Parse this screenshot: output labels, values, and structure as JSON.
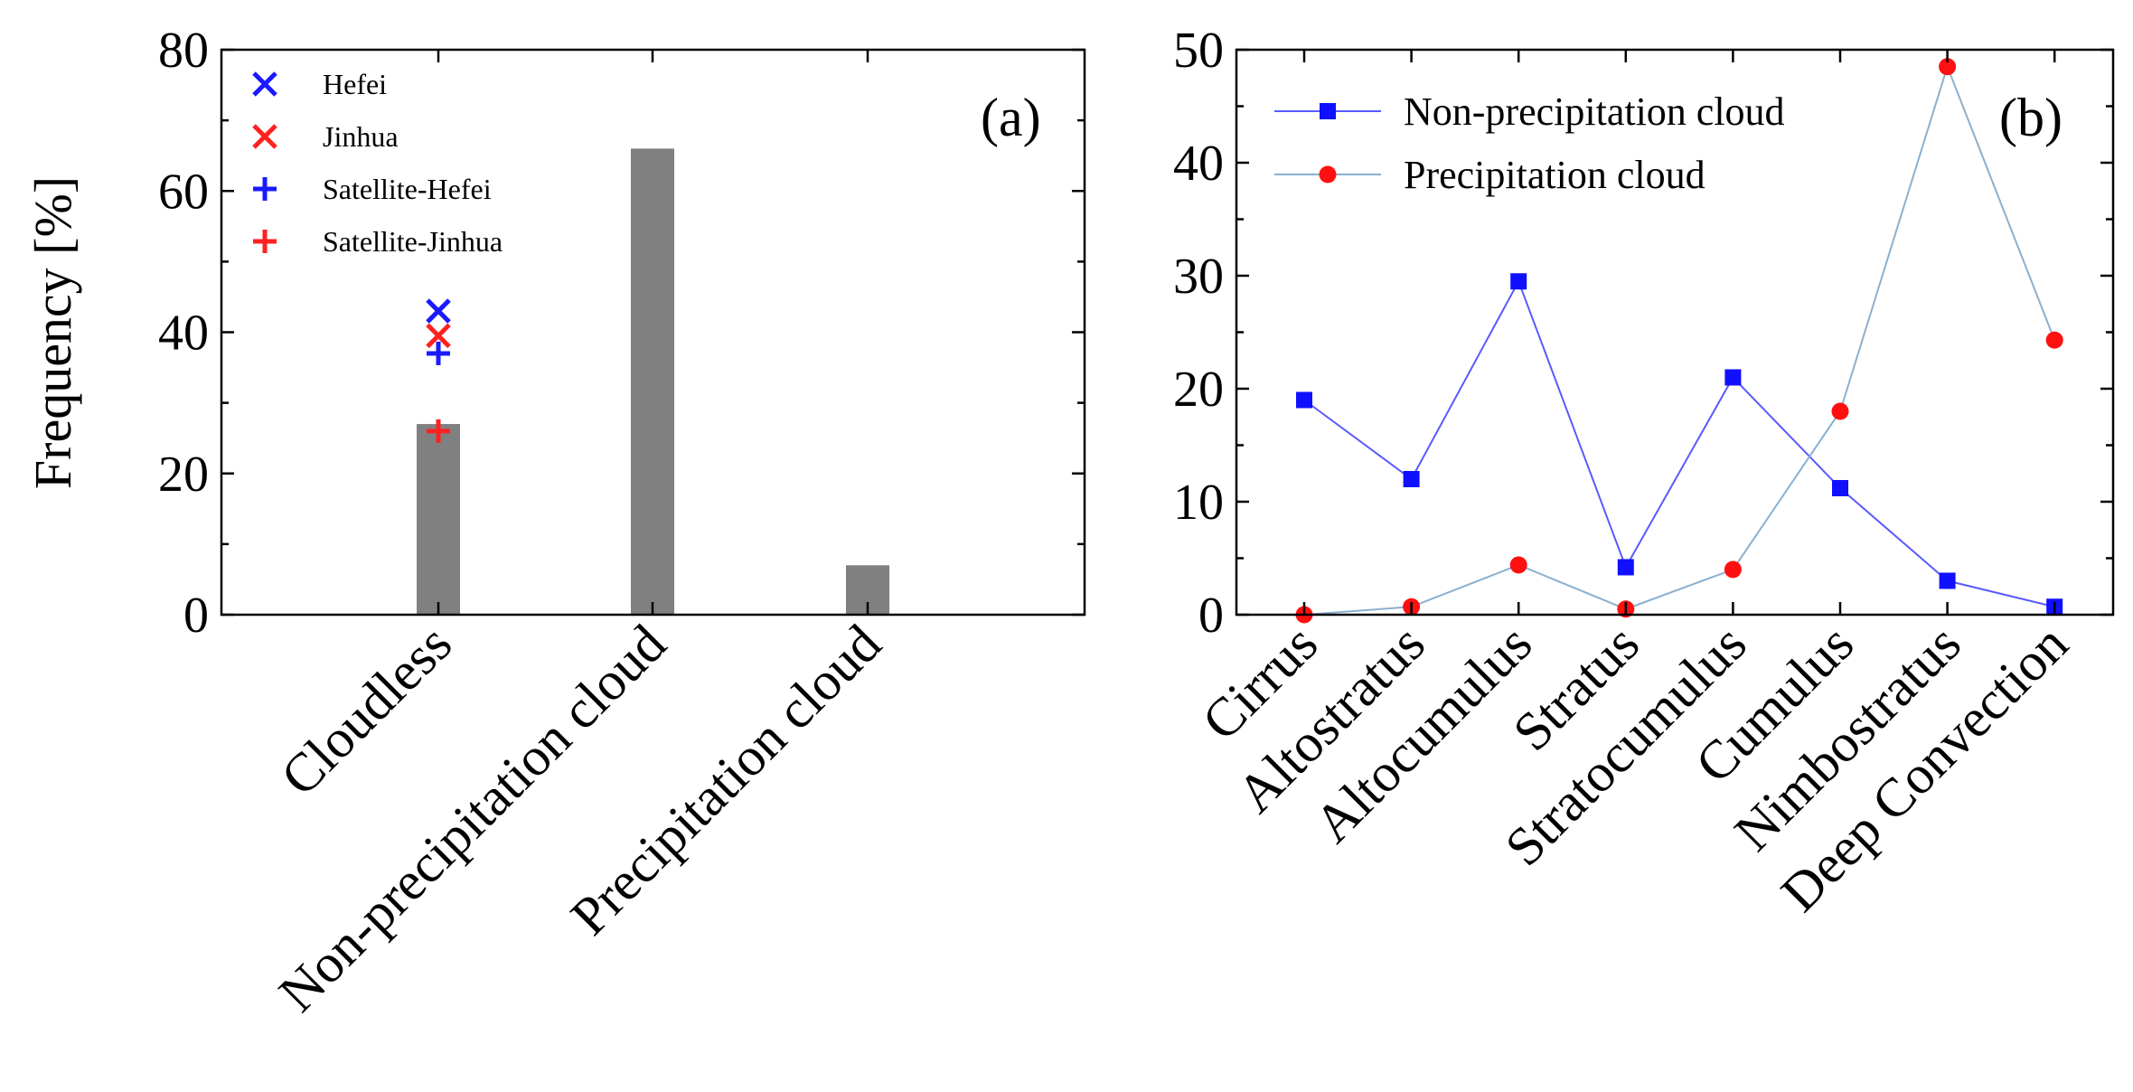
{
  "chart_data": [
    {
      "type": "bar",
      "panel_label": "(a)",
      "ylabel": "Frequency [%]",
      "ylim": [
        0,
        80
      ],
      "yticks": [
        "0",
        "20",
        "40",
        "60",
        "80"
      ],
      "categories": [
        "Cloudless",
        "Non-precipitation cloud",
        "Precipitation cloud"
      ],
      "values": [
        27,
        66,
        7
      ],
      "bar_color": "#808080",
      "markers": [
        {
          "name": "Hefei",
          "symbol": "x",
          "color": "#1a1aff",
          "category": 0,
          "value": 43
        },
        {
          "name": "Jinhua",
          "symbol": "x",
          "color": "#ff2020",
          "category": 0,
          "value": 39.5
        },
        {
          "name": "Satellite-Hefei",
          "symbol": "+",
          "color": "#1a1aff",
          "category": 0,
          "value": 37
        },
        {
          "name": "Satellite-Jinhua",
          "symbol": "+",
          "color": "#ff2020",
          "category": 0,
          "value": 26
        }
      ],
      "legend_position": "top-left"
    },
    {
      "type": "line",
      "panel_label": "(b)",
      "ylim": [
        0,
        50
      ],
      "yticks": [
        "0",
        "10",
        "20",
        "30",
        "40",
        "50"
      ],
      "categories": [
        "Cirrus",
        "Altostratus",
        "Altocumulus",
        "Stratus",
        "Stratocumulus",
        "Cumulus",
        "Nimbostratus",
        "Deep Convection"
      ],
      "series": [
        {
          "name": "Non-precipitation cloud",
          "marker": "square",
          "marker_color": "#1010ff",
          "line_color": "#5a5aff",
          "values": [
            19,
            12,
            29.5,
            4.2,
            21,
            11.2,
            3,
            0.7
          ]
        },
        {
          "name": "Precipitation cloud",
          "marker": "circle",
          "marker_color": "#ff1010",
          "line_color": "#8ab0d0",
          "values": [
            0,
            0.7,
            4.4,
            0.5,
            4,
            18,
            48.5,
            24.3
          ]
        }
      ],
      "legend_position": "top-left"
    }
  ]
}
